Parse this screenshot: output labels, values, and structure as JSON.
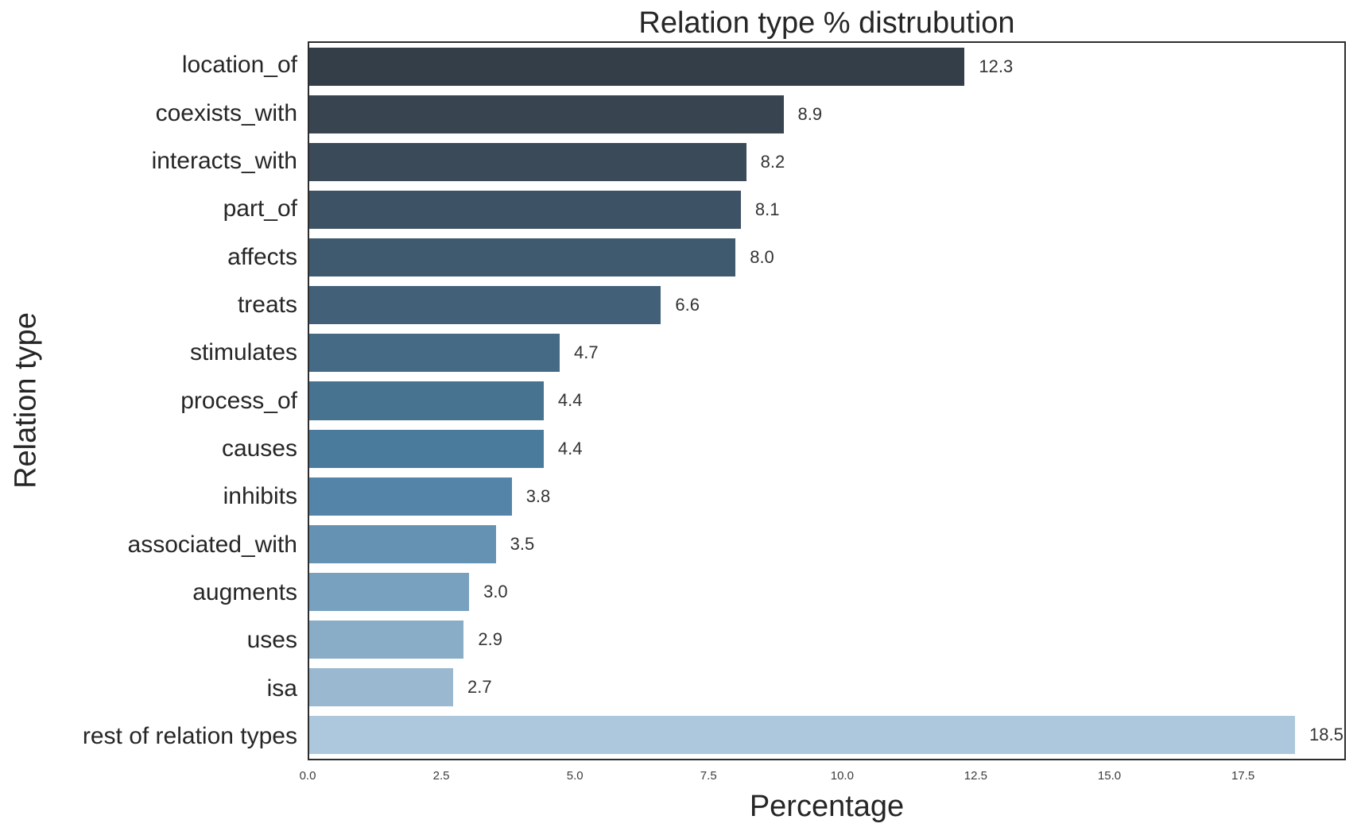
{
  "chart_data": {
    "type": "bar",
    "orientation": "horizontal",
    "title": "Relation type % distrubution",
    "xlabel": "Percentage",
    "ylabel": "Relation type",
    "categories": [
      "location_of",
      "coexists_with",
      "interacts_with",
      "part_of",
      "affects",
      "treats",
      "stimulates",
      "process_of",
      "causes",
      "inhibits",
      "associated_with",
      "augments",
      "uses",
      "isa",
      "rest of relation types"
    ],
    "values": [
      12.3,
      8.9,
      8.2,
      8.1,
      8.0,
      6.6,
      4.7,
      4.4,
      4.4,
      3.8,
      3.5,
      3.0,
      2.9,
      2.7,
      18.5
    ],
    "value_labels": [
      "12.3",
      "8.9",
      "8.2",
      "8.1",
      "8.0",
      "6.6",
      "4.7",
      "4.4",
      "4.4",
      "3.8",
      "3.5",
      "3.0",
      "2.9",
      "2.7",
      "18.5"
    ],
    "bar_colors": [
      "#343e48",
      "#384450",
      "#3a4a59",
      "#3d5264",
      "#3f596e",
      "#426179",
      "#446a85",
      "#477290",
      "#4a7b9d",
      "#5485a8",
      "#6592b3",
      "#78a1bf",
      "#89acc7",
      "#9ab9d0",
      "#adc8dc"
    ],
    "xlim": [
      0,
      19.425
    ],
    "x_ticks": [
      {
        "label": "0.0",
        "value": 0
      },
      {
        "label": "2.5",
        "value": 2.5
      },
      {
        "label": "5.0",
        "value": 5.0
      },
      {
        "label": "7.5",
        "value": 7.5
      },
      {
        "label": "10.0",
        "value": 10.0
      },
      {
        "label": "12.5",
        "value": 12.5
      },
      {
        "label": "15.0",
        "value": 15.0
      },
      {
        "label": "17.5",
        "value": 17.5
      }
    ],
    "grid": false,
    "legend": "none",
    "spine_color": "#2d2d2d",
    "background_color": "#ffffff",
    "text_color": "#262626"
  }
}
